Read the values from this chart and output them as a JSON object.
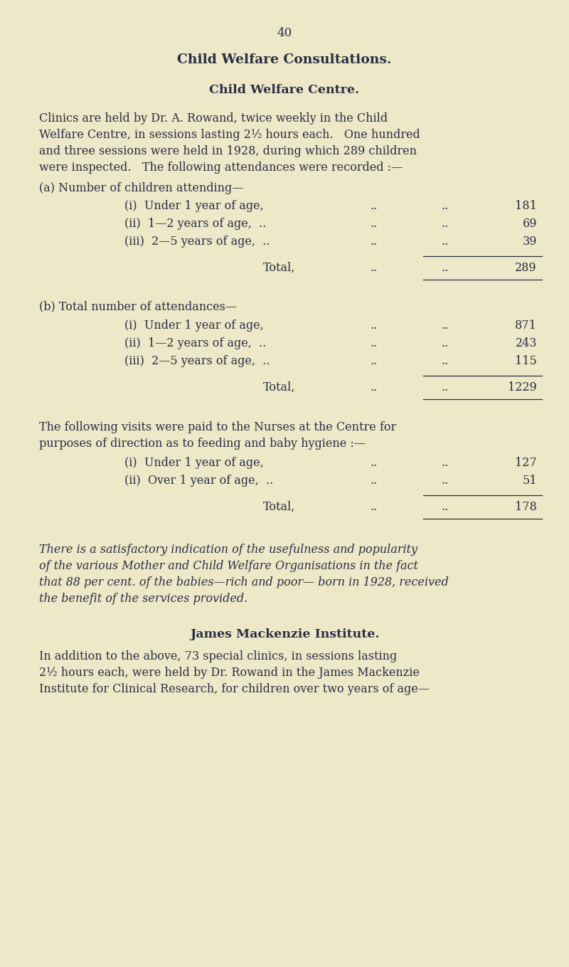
{
  "bg_color": "#ede8c8",
  "text_color": "#2a2d45",
  "page_number": "40",
  "title1": "Child Welfare Consultations.",
  "title2": "Child Welfare Centre.",
  "para1_lines": [
    "Clinics are held by Dr. A. Rowand, twice weekly in the Child",
    "Welfare Centre, in sessions lasting 2½ hours each.   One hundred",
    "and three sessions were held in 1928, during which 289 children",
    "were inspected.   The following attendances were recorded :—"
  ],
  "label_a": "(a) Number of children attending—",
  "rows_a": [
    {
      "label": "(i)  Under 1 year of age,",
      "dots1": "..",
      "dots2": "..",
      "val": "181"
    },
    {
      "label": "(ii)  1—2 years of age,  ..",
      "dots1": "..",
      "dots2": "..",
      "val": "69"
    },
    {
      "label": "(iii)  2—5 years of age,  ..",
      "dots1": "..",
      "dots2": "..",
      "val": "39"
    }
  ],
  "total_a": {
    "label": "Total,",
    "dots1": "..",
    "dots2": "..",
    "val": "289"
  },
  "label_b": "(b) Total number of attendances—",
  "rows_b": [
    {
      "label": "(i)  Under 1 year of age,",
      "dots1": "..",
      "dots2": "..",
      "val": "871"
    },
    {
      "label": "(ii)  1—2 years of age,  ..",
      "dots1": "..",
      "dots2": "..",
      "val": "243"
    },
    {
      "label": "(iii)  2—5 years of age,  ..",
      "dots1": "..",
      "dots2": "..",
      "val": "115"
    }
  ],
  "total_b": {
    "label": "Total,",
    "dots1": "..",
    "dots2": "..",
    "val": "1229"
  },
  "para2_lines": [
    "The following visits were paid to the Nurses at the Centre for",
    "purposes of direction as to feeding and baby hygiene :—"
  ],
  "rows_c": [
    {
      "label": "(i)  Under 1 year of age,",
      "dots1": "..",
      "dots2": "..",
      "val": "127"
    },
    {
      "label": "(ii)  Over 1 year of age,  ..",
      "dots1": "..",
      "dots2": "..",
      "val": "51"
    }
  ],
  "total_c": {
    "label": "Total,",
    "dots1": "..",
    "dots2": "..",
    "val": "178"
  },
  "italic_lines": [
    "There is a satisfactory indication of the usefulness and popularity",
    "of the various Mother and Child Welfare Organisations in the fact",
    "that 88 per cent. of the babies—rich and poor— born in 1928, received",
    "the benefit of the services provided."
  ],
  "title3": "James Mackenzie Institute.",
  "para3_lines": [
    "In addition to the above, 73 special clinics, in sessions lasting",
    "2½ hours each, were held by Dr. Rowand in the James Mackenzie",
    "Institute for Clinical Research, for children over two years of age—"
  ]
}
